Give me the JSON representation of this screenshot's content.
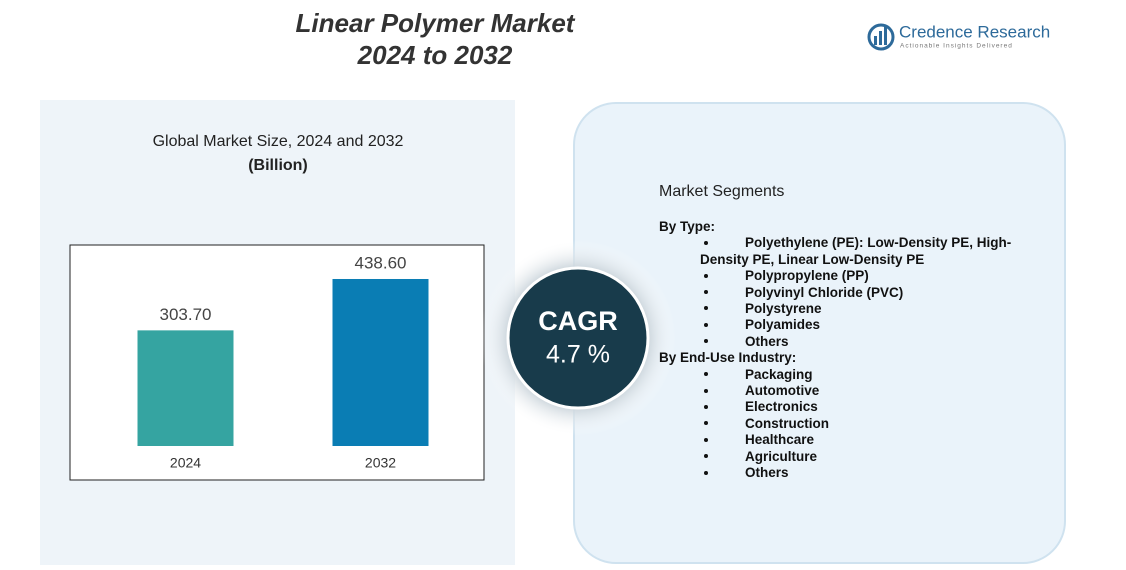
{
  "title": {
    "line1": "Linear Polymer Market",
    "line2": "2024 to 2032"
  },
  "logo": {
    "name": "Credence Research",
    "tagline": "Actionable Insights Delivered"
  },
  "chart_data": {
    "type": "bar",
    "title": "Global Market Size, 2024 and 2032",
    "subtitle": "(Billion)",
    "categories": [
      "2024",
      "2032"
    ],
    "values": [
      303.7,
      438.6
    ],
    "value_labels": [
      "303.70",
      "438.60"
    ],
    "colors": [
      "#35a4a1",
      "#0a7db4"
    ],
    "ylim": [
      0,
      520
    ]
  },
  "cagr": {
    "label": "CAGR",
    "value": "4.7 %"
  },
  "segments": {
    "heading": "Market Segments",
    "groups": [
      {
        "title": "By Type:",
        "items": [
          "Polyethylene (PE): Low-Density PE, High-Density PE, Linear Low-Density PE",
          "Polypropylene (PP)",
          "Polyvinyl Chloride (PVC)",
          "Polystyrene",
          "Polyamides",
          "Others"
        ]
      },
      {
        "title": "By End-Use Industry:",
        "items": [
          "Packaging",
          "Automotive",
          "Electronics",
          "Construction",
          "Healthcare",
          "Agriculture",
          "Others"
        ]
      }
    ]
  }
}
